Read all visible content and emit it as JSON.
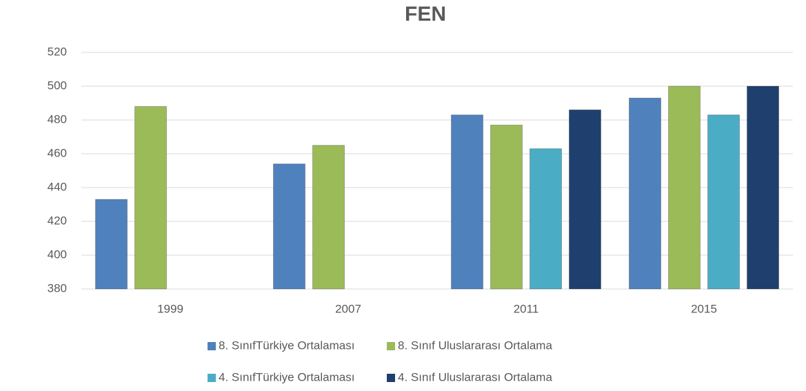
{
  "chart_data": {
    "type": "bar",
    "title": "FEN",
    "categories": [
      "1999",
      "2007",
      "2011",
      "2015"
    ],
    "series": [
      {
        "name": "8. SınıfTürkiye Ortalaması",
        "color": "#4f81bd",
        "values": [
          433,
          454,
          483,
          493
        ]
      },
      {
        "name": "8. Sınıf Uluslararası Ortalama",
        "color": "#9bbb59",
        "values": [
          488,
          465,
          477,
          500
        ]
      },
      {
        "name": "4. SınıfTürkiye Ortalaması",
        "color": "#4bacc6",
        "values": [
          null,
          null,
          463,
          483
        ]
      },
      {
        "name": "4. Sınıf Uluslararası Ortalama",
        "color": "#1f3f6e",
        "values": [
          null,
          null,
          486,
          500
        ]
      }
    ],
    "ylim": [
      380,
      520
    ],
    "yticks": [
      380,
      400,
      420,
      440,
      460,
      480,
      500,
      520
    ],
    "grid": true,
    "legend": "bottom"
  }
}
